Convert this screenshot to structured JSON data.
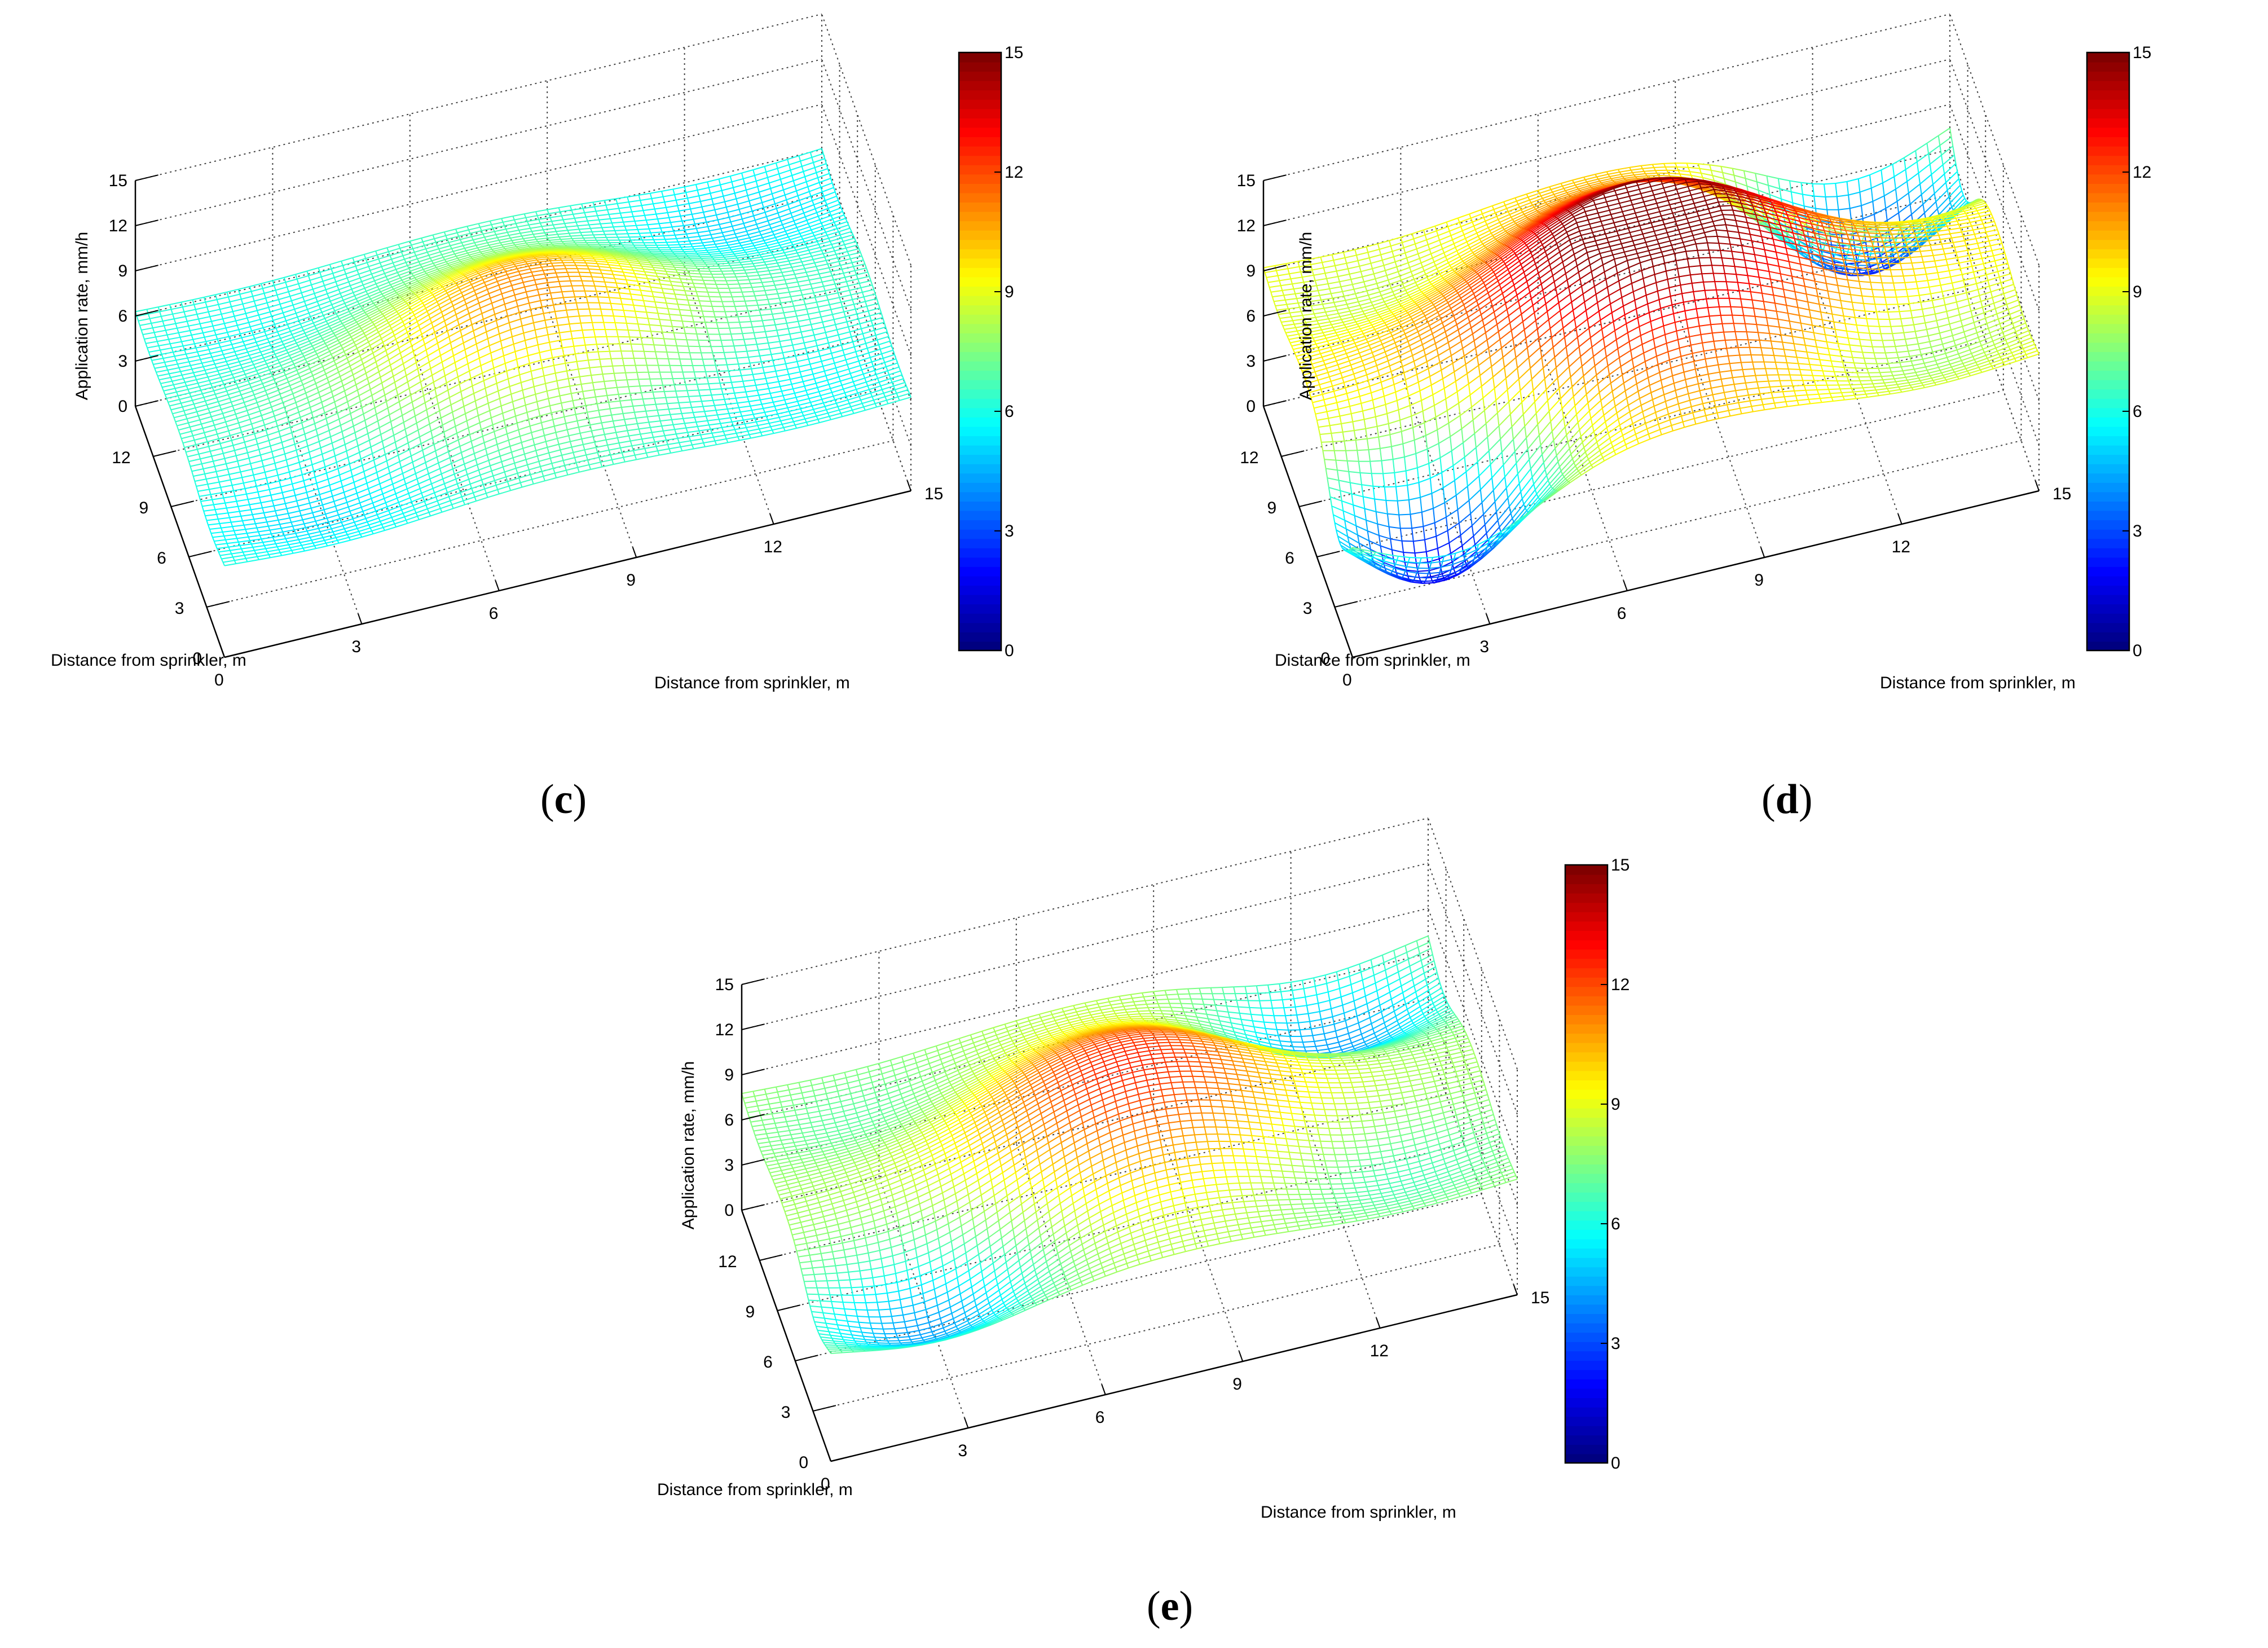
{
  "chart_data": [
    {
      "type": "surface",
      "panel_label": "c",
      "ylabel": "Application rate, mm/h",
      "xlabel": "Distance from sprinkler, m",
      "depth_label": "Distance from sprinkler, m",
      "x_ticks": [
        "0",
        "3",
        "6",
        "9",
        "12",
        "15"
      ],
      "y_ticks": [
        "0",
        "3",
        "6",
        "9",
        "12"
      ],
      "z_ticks": [
        "0",
        "3",
        "6",
        "9",
        "12",
        "15"
      ],
      "zlim": [
        0,
        15
      ],
      "colorbar": {
        "min": 0,
        "max": 15,
        "ticks": [
          "0",
          "3",
          "6",
          "9",
          "12",
          "15"
        ],
        "colormap": "jet"
      },
      "surface": {
        "base": 6.5,
        "features": [
          {
            "x": 7.5,
            "y": 9.0,
            "a": 2.8,
            "s": 2.6
          },
          {
            "x": 7.5,
            "y": 6.0,
            "a": 2.6,
            "s": 2.6
          },
          {
            "x": 2.5,
            "y": 2.5,
            "a": -1.5,
            "s": 2.2
          },
          {
            "x": 12.5,
            "y": 12.5,
            "a": -1.6,
            "s": 2.2
          },
          {
            "x": 12.5,
            "y": 2.5,
            "a": -1.0,
            "s": 2.2
          },
          {
            "x": 2.5,
            "y": 12.5,
            "a": -0.8,
            "s": 2.2
          }
        ]
      }
    },
    {
      "type": "surface",
      "panel_label": "d",
      "ylabel": "Application rate, mm/h",
      "xlabel": "Distance from sprinkler, m",
      "depth_label": "Distance from sprinkler, m",
      "x_ticks": [
        "0",
        "3",
        "6",
        "9",
        "12",
        "15"
      ],
      "y_ticks": [
        "0",
        "3",
        "6",
        "9",
        "12"
      ],
      "z_ticks": [
        "0",
        "3",
        "6",
        "9",
        "12",
        "15"
      ],
      "zlim": [
        0,
        15
      ],
      "colorbar": {
        "min": 0,
        "max": 15,
        "ticks": [
          "0",
          "3",
          "6",
          "9",
          "12",
          "15"
        ],
        "colormap": "jet"
      },
      "surface": {
        "base": 9.5,
        "features": [
          {
            "x": 7.5,
            "y": 9.5,
            "a": 4.5,
            "s": 2.8
          },
          {
            "x": 7.5,
            "y": 5.5,
            "a": 4.0,
            "s": 2.8
          },
          {
            "x": 2.2,
            "y": 2.2,
            "a": -8.5,
            "s": 1.9
          },
          {
            "x": 12.8,
            "y": 12.8,
            "a": -8.0,
            "s": 1.9
          },
          {
            "x": 12.5,
            "y": 2.5,
            "a": -2.0,
            "s": 2.0
          },
          {
            "x": 2.5,
            "y": 12.5,
            "a": -1.5,
            "s": 2.0
          }
        ]
      }
    },
    {
      "type": "surface",
      "panel_label": "e",
      "ylabel": "Application rate, mm/h",
      "xlabel": "Distance from sprinkler, m",
      "depth_label": "Distance from sprinkler, m",
      "x_ticks": [
        "0",
        "3",
        "6",
        "9",
        "12",
        "15"
      ],
      "y_ticks": [
        "0",
        "3",
        "6",
        "9",
        "12"
      ],
      "z_ticks": [
        "0",
        "3",
        "6",
        "9",
        "12",
        "15"
      ],
      "zlim": [
        0,
        15
      ],
      "colorbar": {
        "min": 0,
        "max": 15,
        "ticks": [
          "0",
          "3",
          "6",
          "9",
          "12",
          "15"
        ],
        "colormap": "jet"
      },
      "surface": {
        "base": 8.0,
        "features": [
          {
            "x": 7.5,
            "y": 9.5,
            "a": 3.2,
            "s": 2.6
          },
          {
            "x": 7.5,
            "y": 5.5,
            "a": 3.0,
            "s": 2.6
          },
          {
            "x": 2.5,
            "y": 2.5,
            "a": -4.0,
            "s": 2.0
          },
          {
            "x": 12.5,
            "y": 12.5,
            "a": -4.0,
            "s": 2.0
          },
          {
            "x": 12.5,
            "y": 2.5,
            "a": -1.5,
            "s": 2.0
          },
          {
            "x": 2.5,
            "y": 12.5,
            "a": -1.2,
            "s": 2.0
          }
        ]
      }
    }
  ]
}
